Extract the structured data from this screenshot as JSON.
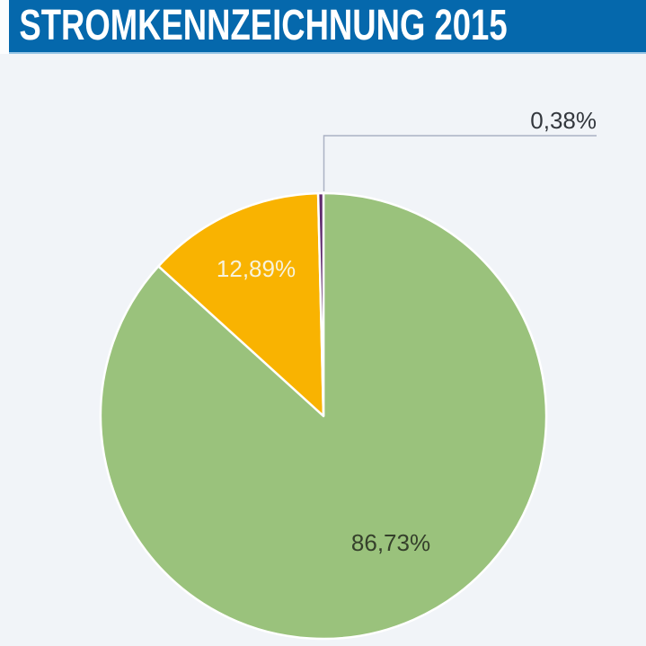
{
  "header": {
    "title": "STROMKENNZEICHNUNG 2015"
  },
  "colors": {
    "page_bg": "#F1F4F8",
    "header_bg": "#0568AC",
    "header_underline": "#99C7E6",
    "callout_line": "#ABB2C4",
    "slice_border": "#FFFFFF"
  },
  "chart_data": {
    "type": "pie",
    "title": "STROMKENNZEICHNUNG 2015",
    "start_angle_deg": 0,
    "direction": "clockwise",
    "legend": "none",
    "slices": [
      {
        "name": "green",
        "label": "86,73%",
        "value": 86.73,
        "color": "#9AC27C",
        "label_color": "#35402B",
        "label_placement": "inside"
      },
      {
        "name": "orange",
        "label": "12,89%",
        "value": 12.89,
        "color": "#F9B301",
        "label_color": "#F7F3DC",
        "label_placement": "inside"
      },
      {
        "name": "purple",
        "label": "0,38%",
        "value": 0.38,
        "color": "#5F2B6E",
        "label_color": "#33373D",
        "label_placement": "callout"
      }
    ]
  }
}
